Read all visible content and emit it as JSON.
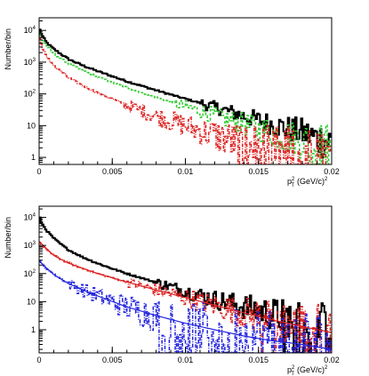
{
  "chart_data": [
    {
      "type": "line",
      "step": true,
      "xlabel": "p",
      "xlabel_sub": "T",
      "xlabel_sup": "2",
      "xlabel_unit": "(GeV/c)",
      "xlabel_unit_sup": "2",
      "ylabel": "Number/bin",
      "xlim": [
        0,
        0.02
      ],
      "ylim": [
        0.6,
        25000
      ],
      "yscale": "log",
      "grid": false,
      "x_ticks": [
        {
          "value": 0,
          "label": "0"
        },
        {
          "value": 0.005,
          "label": "0.005"
        },
        {
          "value": 0.01,
          "label": "0.01"
        },
        {
          "value": 0.015,
          "label": "0.015"
        },
        {
          "value": 0.02,
          "label": "0.02"
        }
      ],
      "y_ticks": [
        {
          "value": 1,
          "base": "1",
          "exp": ""
        },
        {
          "value": 10,
          "base": "10",
          "exp": ""
        },
        {
          "value": 100,
          "base": "10",
          "exp": "2"
        },
        {
          "value": 1000,
          "base": "10",
          "exp": "3"
        },
        {
          "value": 10000,
          "base": "10",
          "exp": "4"
        }
      ],
      "series": [
        {
          "color": "#000000",
          "style": "solid",
          "width": 2,
          "points": [
            [
              0,
              12000
            ],
            [
              0.0002,
              7000
            ],
            [
              0.0005,
              4200
            ],
            [
              0.001,
              2600
            ],
            [
              0.0015,
              1800
            ],
            [
              0.002,
              1250
            ],
            [
              0.003,
              780
            ],
            [
              0.004,
              520
            ],
            [
              0.005,
              360
            ],
            [
              0.006,
              250
            ],
            [
              0.007,
              180
            ],
            [
              0.008,
              130
            ],
            [
              0.009,
              95
            ],
            [
              0.01,
              70
            ],
            [
              0.011,
              52
            ],
            [
              0.012,
              38
            ],
            [
              0.013,
              28
            ],
            [
              0.014,
              20
            ],
            [
              0.015,
              15
            ],
            [
              0.016,
              11
            ],
            [
              0.017,
              8
            ],
            [
              0.018,
              6
            ],
            [
              0.019,
              4
            ],
            [
              0.02,
              3
            ]
          ]
        },
        {
          "color": "#33cc33",
          "style": "dashed",
          "width": 1.5,
          "points": [
            [
              0,
              9000
            ],
            [
              0.0002,
              5200
            ],
            [
              0.0005,
              3200
            ],
            [
              0.001,
              1900
            ],
            [
              0.0015,
              1300
            ],
            [
              0.002,
              900
            ],
            [
              0.003,
              540
            ],
            [
              0.004,
              350
            ],
            [
              0.005,
              230
            ],
            [
              0.006,
              160
            ],
            [
              0.007,
              110
            ],
            [
              0.008,
              78
            ],
            [
              0.009,
              56
            ],
            [
              0.01,
              40
            ],
            [
              0.011,
              29
            ],
            [
              0.012,
              21
            ],
            [
              0.013,
              15
            ],
            [
              0.014,
              11
            ],
            [
              0.015,
              8
            ],
            [
              0.016,
              6
            ],
            [
              0.017,
              4.5
            ],
            [
              0.018,
              3.5
            ],
            [
              0.019,
              2.5
            ],
            [
              0.02,
              2
            ]
          ]
        },
        {
          "color": "#dd2222",
          "style": "dashdot",
          "width": 1.5,
          "points": [
            [
              0,
              7000
            ],
            [
              0.0002,
              3000
            ],
            [
              0.0005,
              1500
            ],
            [
              0.001,
              800
            ],
            [
              0.0015,
              500
            ],
            [
              0.002,
              330
            ],
            [
              0.003,
              180
            ],
            [
              0.004,
              110
            ],
            [
              0.005,
              70
            ],
            [
              0.006,
              45
            ],
            [
              0.007,
              30
            ],
            [
              0.008,
              20
            ],
            [
              0.009,
              14
            ],
            [
              0.01,
              10
            ],
            [
              0.011,
              7
            ],
            [
              0.012,
              5
            ],
            [
              0.013,
              3.5
            ],
            [
              0.014,
              2.5
            ],
            [
              0.015,
              2
            ],
            [
              0.016,
              1.5
            ],
            [
              0.017,
              1.2
            ],
            [
              0.018,
              1
            ],
            [
              0.019,
              0.8
            ],
            [
              0.02,
              0.7
            ]
          ]
        }
      ]
    },
    {
      "type": "line",
      "step": true,
      "xlabel": "p",
      "xlabel_sub": "T",
      "xlabel_sup": "2",
      "xlabel_unit": "(GeV/c)",
      "xlabel_unit_sup": "2",
      "ylabel": "Number/bin",
      "xlim": [
        0,
        0.02
      ],
      "ylim": [
        0.15,
        25000
      ],
      "yscale": "log",
      "grid": false,
      "x_ticks": [
        {
          "value": 0,
          "label": "0"
        },
        {
          "value": 0.005,
          "label": "0.005"
        },
        {
          "value": 0.01,
          "label": "0.01"
        },
        {
          "value": 0.015,
          "label": "0.015"
        },
        {
          "value": 0.02,
          "label": "0.02"
        }
      ],
      "y_ticks": [
        {
          "value": 1,
          "base": "1",
          "exp": ""
        },
        {
          "value": 10,
          "base": "10",
          "exp": ""
        },
        {
          "value": 100,
          "base": "10",
          "exp": "2"
        },
        {
          "value": 1000,
          "base": "10",
          "exp": "3"
        },
        {
          "value": 10000,
          "base": "10",
          "exp": "4"
        }
      ],
      "series": [
        {
          "color": "#000000",
          "style": "solid",
          "width": 2,
          "points": [
            [
              0,
              11000
            ],
            [
              0.0002,
              6000
            ],
            [
              0.0005,
              3500
            ],
            [
              0.001,
              1800
            ],
            [
              0.0015,
              1100
            ],
            [
              0.002,
              700
            ],
            [
              0.003,
              380
            ],
            [
              0.004,
              230
            ],
            [
              0.005,
              150
            ],
            [
              0.006,
              100
            ],
            [
              0.007,
              70
            ],
            [
              0.008,
              48
            ],
            [
              0.009,
              34
            ],
            [
              0.01,
              24
            ],
            [
              0.011,
              17
            ],
            [
              0.012,
              12
            ],
            [
              0.013,
              9
            ],
            [
              0.014,
              6.5
            ],
            [
              0.015,
              5
            ],
            [
              0.016,
              3.5
            ],
            [
              0.017,
              2.6
            ],
            [
              0.018,
              2
            ],
            [
              0.019,
              1.5
            ],
            [
              0.02,
              1.2
            ]
          ]
        },
        {
          "color": "#dd2222",
          "style": "dashdot",
          "width": 1.5,
          "points": [
            [
              0,
              1500
            ],
            [
              0.0002,
              1000
            ],
            [
              0.0005,
              700
            ],
            [
              0.001,
              450
            ],
            [
              0.0015,
              320
            ],
            [
              0.002,
              240
            ],
            [
              0.003,
              150
            ],
            [
              0.004,
              100
            ],
            [
              0.005,
              70
            ],
            [
              0.006,
              50
            ],
            [
              0.007,
              36
            ],
            [
              0.008,
              26
            ],
            [
              0.009,
              19
            ],
            [
              0.01,
              14
            ],
            [
              0.011,
              10
            ],
            [
              0.012,
              7.5
            ],
            [
              0.013,
              5.5
            ],
            [
              0.014,
              4
            ],
            [
              0.015,
              3
            ],
            [
              0.016,
              2.2
            ],
            [
              0.017,
              1.7
            ],
            [
              0.018,
              1.3
            ],
            [
              0.019,
              1
            ],
            [
              0.02,
              0.8
            ]
          ]
        },
        {
          "color": "#2222dd",
          "style": "dashdot",
          "width": 1.5,
          "points": [
            [
              0,
              300
            ],
            [
              0.0002,
              220
            ],
            [
              0.0005,
              150
            ],
            [
              0.001,
              95
            ],
            [
              0.0015,
              65
            ],
            [
              0.002,
              45
            ],
            [
              0.003,
              26
            ],
            [
              0.004,
              16
            ],
            [
              0.005,
              10
            ],
            [
              0.006,
              6.5
            ],
            [
              0.007,
              4.5
            ],
            [
              0.008,
              3.2
            ],
            [
              0.009,
              2.3
            ],
            [
              0.01,
              1.7
            ],
            [
              0.011,
              1.3
            ],
            [
              0.012,
              1
            ],
            [
              0.013,
              0.8
            ],
            [
              0.014,
              0.6
            ],
            [
              0.015,
              0.5
            ],
            [
              0.016,
              0.4
            ],
            [
              0.017,
              0.35
            ],
            [
              0.018,
              0.3
            ],
            [
              0.019,
              0.25
            ],
            [
              0.02,
              0.2
            ]
          ]
        },
        {
          "color": "#dd2222",
          "style": "solid",
          "width": 1.2,
          "fit": true,
          "points": [
            [
              0,
              1400
            ],
            [
              0.001,
              440
            ],
            [
              0.002,
              235
            ],
            [
              0.004,
              100
            ],
            [
              0.006,
              50
            ],
            [
              0.008,
              26
            ],
            [
              0.01,
              14
            ],
            [
              0.012,
              7.5
            ],
            [
              0.014,
              4
            ],
            [
              0.016,
              2.2
            ],
            [
              0.018,
              1.3
            ],
            [
              0.02,
              0.8
            ]
          ]
        },
        {
          "color": "#2222dd",
          "style": "solid",
          "width": 1.2,
          "fit": true,
          "points": [
            [
              0,
              280
            ],
            [
              0.001,
              92
            ],
            [
              0.002,
              44
            ],
            [
              0.004,
              16
            ],
            [
              0.006,
              6.5
            ],
            [
              0.008,
              3.2
            ],
            [
              0.01,
              1.7
            ],
            [
              0.012,
              1
            ],
            [
              0.014,
              0.6
            ],
            [
              0.016,
              0.4
            ],
            [
              0.018,
              0.3
            ],
            [
              0.02,
              0.2
            ]
          ]
        }
      ]
    }
  ]
}
